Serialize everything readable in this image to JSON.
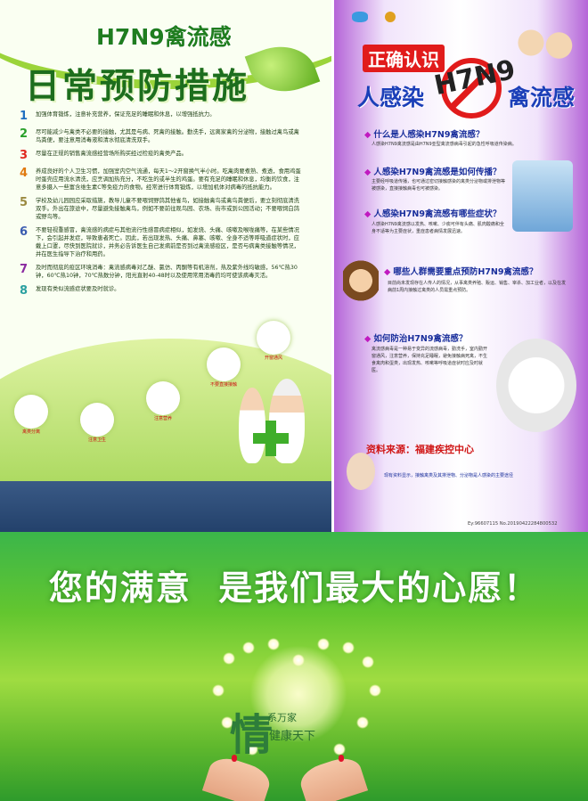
{
  "left_poster": {
    "header_top": "H7N9禽流感",
    "header_main": "日常预防措施",
    "items": [
      {
        "num": "1",
        "text": "加强体育锻炼，注意补充营养，保证充足的睡眠和休息，以增强抵抗力。"
      },
      {
        "num": "2",
        "text": "尽可能减少与禽类不必要的接触，尤其是与病、死禽的接触。勤洗手，远离家禽的分泌物，接触过禽鸟或禽鸟粪便，要注意用消毒液和清水彻底清洗双手。"
      },
      {
        "num": "3",
        "text": "尽量在正规的销售禽流感经营场所购买经过检疫的禽类产品。"
      },
      {
        "num": "4",
        "text": "养成良好的个人卫生习惯，加强室内空气流通，每天1～2开窗换气半小时。吃禽肉要煮熟、煮透，食用鸡蛋时蛋壳应用流水清洗，应烹调加热充分，不吃生的或半生的鸡蛋。要有充足的睡眠和休息，均衡的饮食，注意多摄入一些富含维生素C等免疫力的食物。经常进行体育锻炼，以增加机体对病毒的抵抗能力。"
      },
      {
        "num": "5",
        "text": "学校及幼儿园园应采取措施，教导儿童不要喂饲野鸽其他雀鸟，如接触禽鸟或禽鸟粪便后，要立刻彻底清洗双手。外出在旅途中，尽量避免接触禽鸟，例如不要前往观鸟园、农场、街市或到公园活动；不要喂饲白鸽或野鸟等。"
      },
      {
        "num": "6",
        "text": "不要轻视重感冒，禽流感的病症与其他流行性感冒病症相似，如发烧、头痛、咳嗽及喉咙痛等，在某些情况下，会引起并发症，导致患者死亡。因此，若出现发热、头痛、鼻塞、咳嗽、全身不适等呼吸道症状时，应戴上口罩，尽快到医院就诊，并务必告诉医生自己发病前是否到过禽流感疫区，是否与病禽类接触等情况，并在医生指导下治疗和用药。"
      },
      {
        "num": "7",
        "text": "及时而彻底的疫区环境消毒：禽流感病毒对乙醚、氯仿、丙酮等有机溶剂，热及紫外线均敏感，56℃热30钟，60℃热10钟，70℃热数分钟，阳光直射40-48时以及使用常用消毒药均可使该病毒灭活。"
      },
      {
        "num": "8",
        "text": "发现有类似流感症状要及时就诊。"
      }
    ],
    "bubbles": [
      {
        "label": "禽类分离"
      },
      {
        "label": "注意卫生"
      },
      {
        "label": "注意营养"
      },
      {
        "label": "不要直接接触"
      },
      {
        "label": "开窗通风"
      }
    ]
  },
  "right_poster": {
    "title_red": "正确认识",
    "title_left": "人感染",
    "title_right": "禽流感",
    "title_mark": "H7N9",
    "sections": [
      {
        "q": "什么是人感染H7N9禽流感？",
        "a": "人感染H7N9禽流感是由H7N9亚型禽流感病毒引起的急性呼吸道传染病。"
      },
      {
        "q": "人感染H7N9禽流感是如何传播？",
        "a": "主要经呼吸道传播，也可通过密切接触感染的禽类分泌物或排泄物等被感染，直接接触病毒也可被感染。"
      },
      {
        "q": "人感染H7N9禽流感有哪些症状？",
        "a": "人感染H7N9禽流感以发热、咳嗽、少痰可伴有头痛、肌肉酸痛和全身不适等为主要症状，重症患者病情发展迅速。"
      },
      {
        "q": "哪些人群需要重点预防H7N9禽流感？",
        "a": "目前尚未发现存在人传人的情况，从事禽类养殖、贩运、销售、宰杀、加工业者，以及在发病前1周内接触过禽类的人员需重点预防。"
      },
      {
        "q": "如何防治H7N9禽流感？",
        "a": "禽流感病毒是一种易于变异的流感病毒，勤洗手，室内勤开窗通风，注意营养，保持充足睡眠，避免接触病死禽，不生食禽肉和蛋类，出现发热、咳嗽等呼吸道症状时应及时就医。"
      }
    ],
    "source": "资料来源：福建疾控中心",
    "note": "现有资料显示，接触禽类及其排泄物、分泌物是人感染的主要途径",
    "footer": "Ey:96607115  No.20190422284800532"
  },
  "banner": {
    "slogan": "您的满意  是我们最大的心愿！",
    "calligraphy": "情",
    "sub1": "系万家",
    "sub2": "健康天下"
  }
}
